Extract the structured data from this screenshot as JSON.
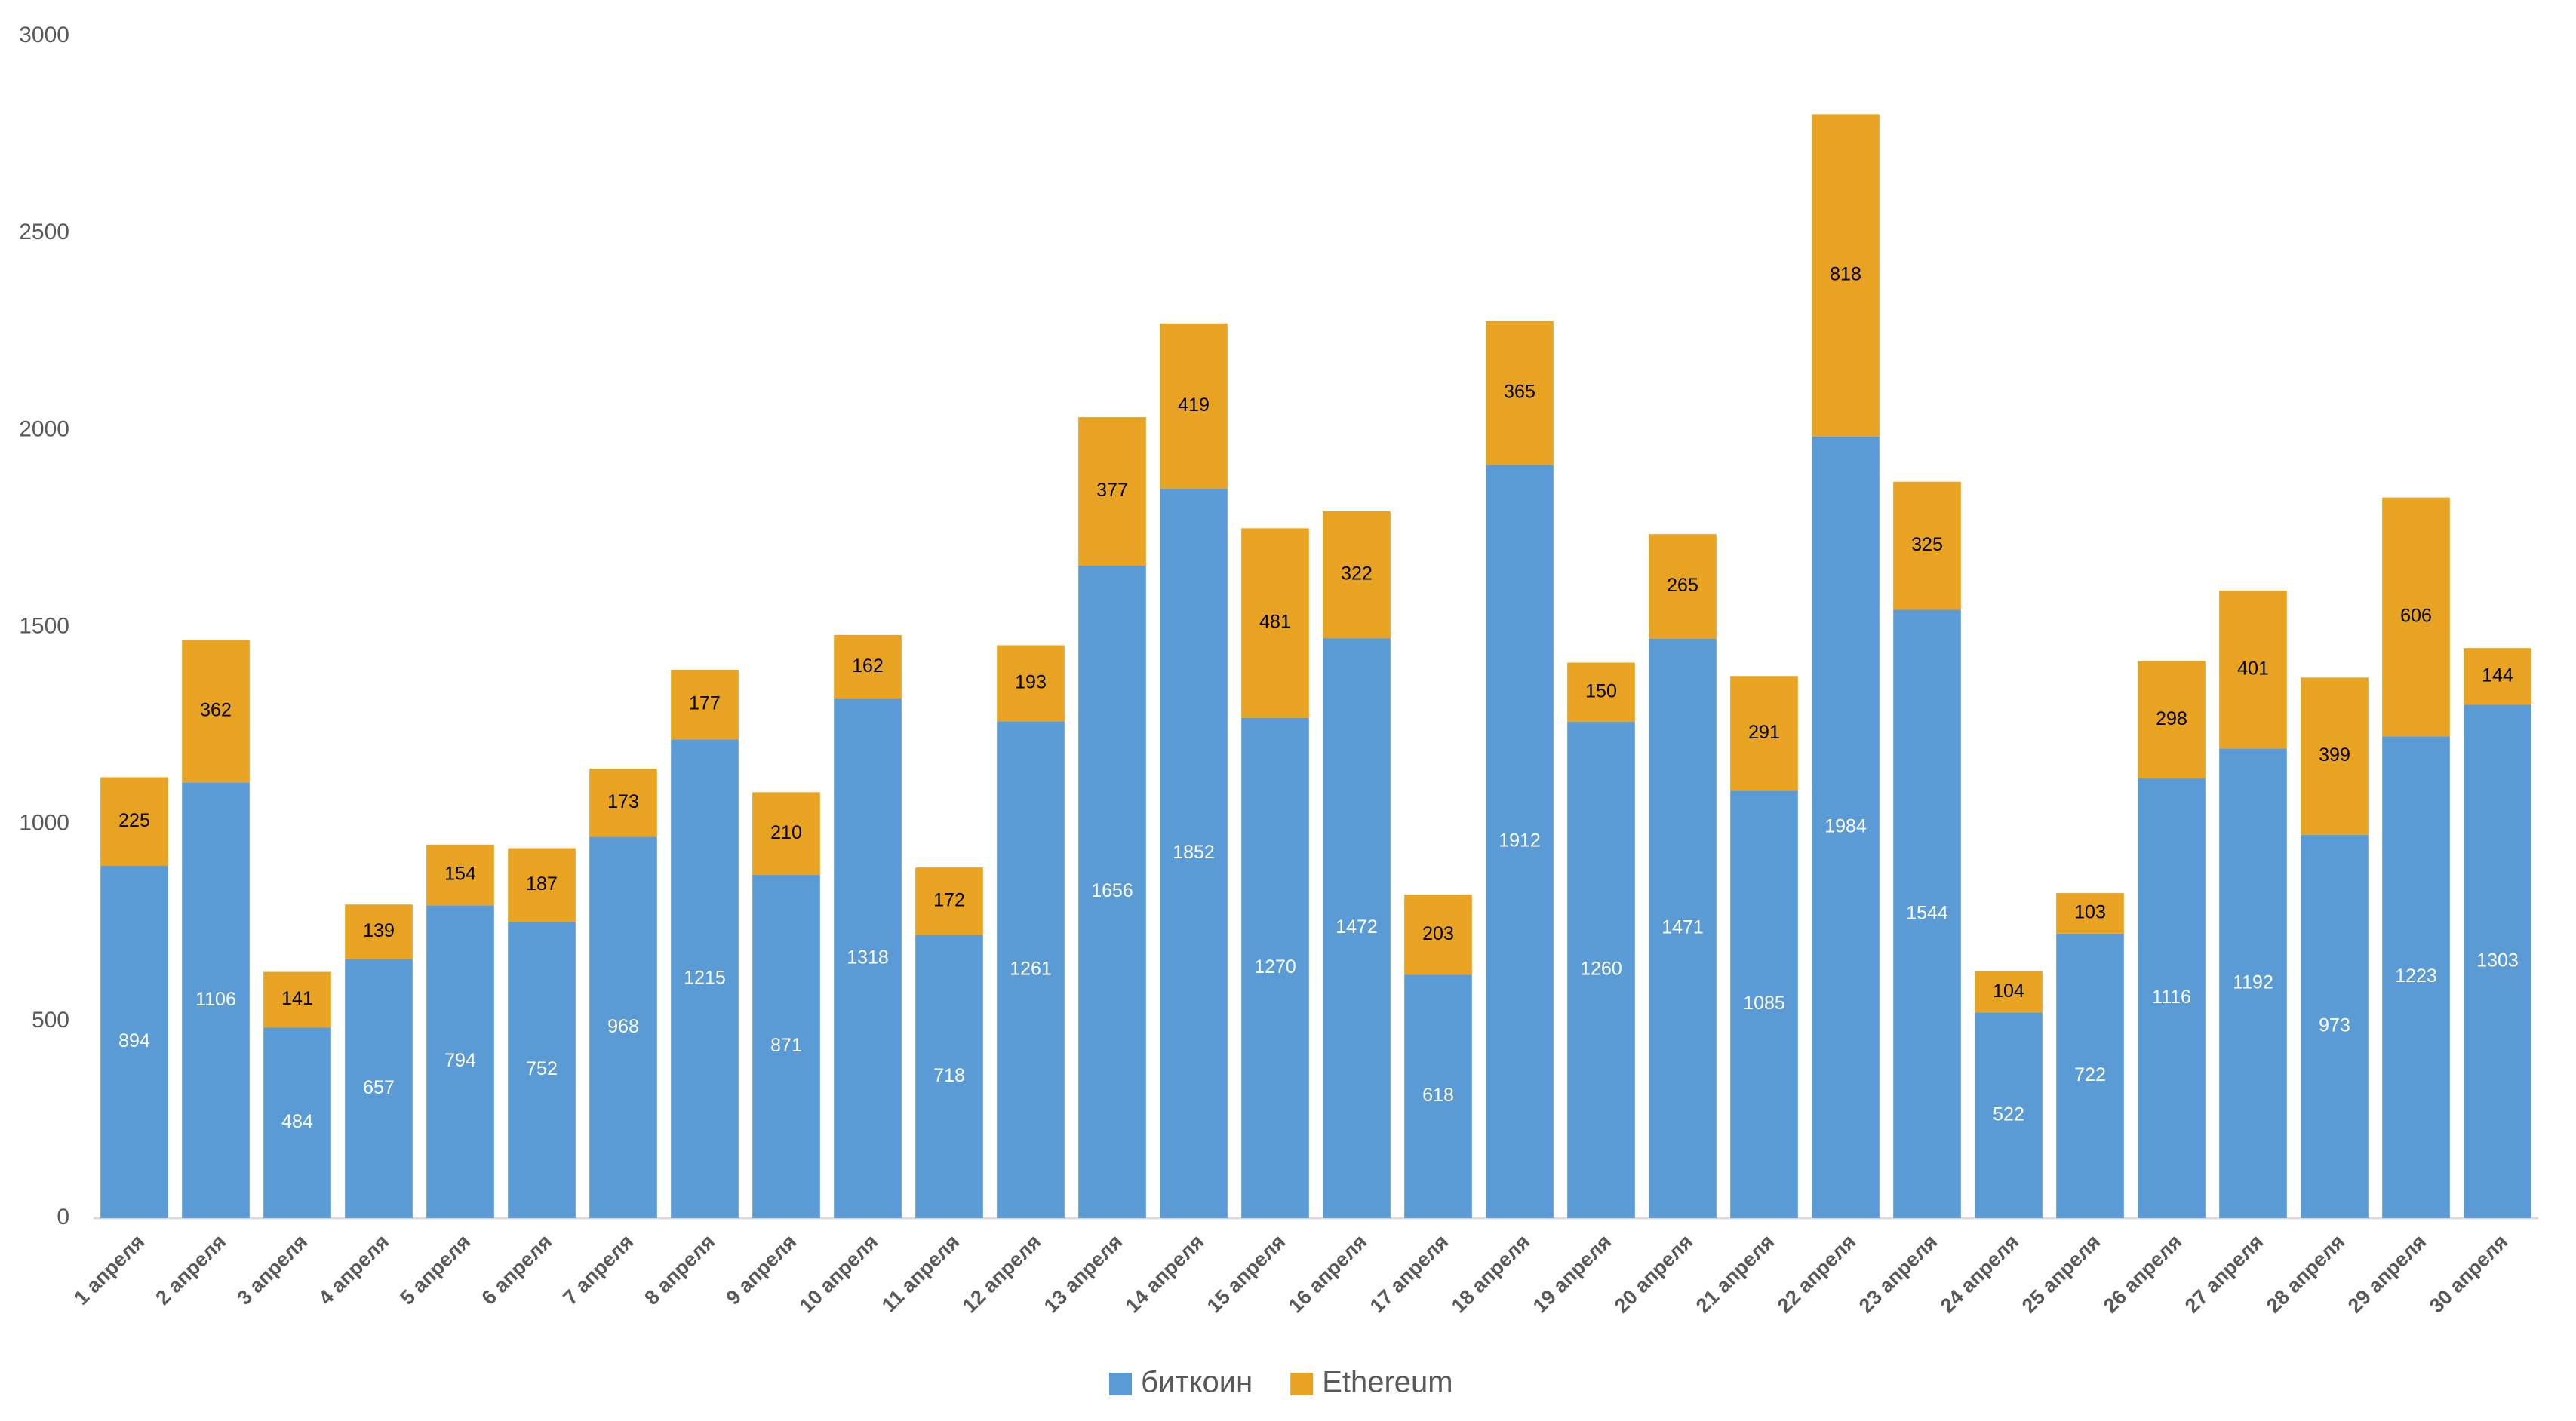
{
  "chart_data": {
    "type": "stacked_bar",
    "categories": [
      "1 апреля",
      "2 апреля",
      "3 апреля",
      "4 апреля",
      "5 апреля",
      "6 апреля",
      "7 апреля",
      "8 апреля",
      "9 апреля",
      "10 апреля",
      "11 апреля",
      "12 апреля",
      "13 апреля",
      "14 апреля",
      "15 апреля",
      "16 апреля",
      "17 апреля",
      "18 апреля",
      "19 апреля",
      "20 апреля",
      "21 апреля",
      "22 апреля",
      "23 апреля",
      "24 апреля",
      "25 апреля",
      "26 апреля",
      "27 апреля",
      "28 апреля",
      "29 апреля",
      "30 апреля"
    ],
    "series": [
      {
        "name": "биткоин",
        "color": "#5b9bd5",
        "values": [
          894,
          1106,
          484,
          657,
          794,
          752,
          968,
          1215,
          871,
          1318,
          718,
          1261,
          1656,
          1852,
          1270,
          1472,
          618,
          1912,
          1260,
          1471,
          1085,
          1984,
          1544,
          522,
          722,
          1116,
          1192,
          973,
          1223,
          1303
        ]
      },
      {
        "name": "Ethereum",
        "color": "#e8a322",
        "values": [
          225,
          362,
          141,
          139,
          154,
          187,
          173,
          177,
          210,
          162,
          172,
          193,
          377,
          419,
          481,
          322,
          203,
          365,
          150,
          265,
          291,
          818,
          325,
          104,
          103,
          298,
          401,
          399,
          606,
          144
        ]
      }
    ],
    "ylim": [
      0,
      3000
    ],
    "yticks": [
      0,
      500,
      1000,
      1500,
      2000,
      2500,
      3000
    ],
    "legend": "bottom"
  }
}
